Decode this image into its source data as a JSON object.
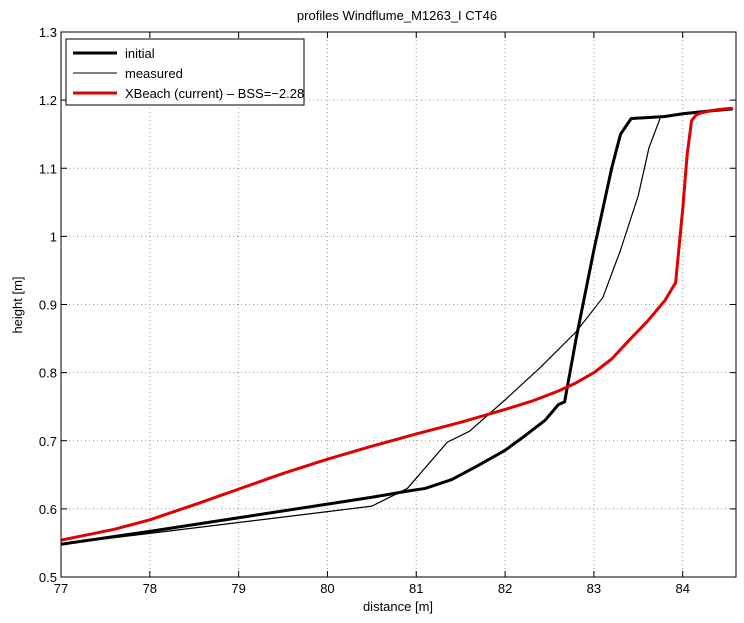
{
  "chart_data": {
    "type": "line",
    "title": "profiles Windflume_M1263_I CT46",
    "xlabel": "distance [m]",
    "ylabel": "height [m]",
    "xlim": [
      77,
      84.6
    ],
    "ylim": [
      0.5,
      1.3
    ],
    "xticks": [
      77,
      78,
      79,
      80,
      81,
      82,
      83,
      84
    ],
    "yticks": [
      0.5,
      0.6,
      0.7,
      0.8,
      0.9,
      1.0,
      1.1,
      1.2,
      1.3
    ],
    "xtick_labels": [
      "77",
      "78",
      "79",
      "80",
      "81",
      "82",
      "83",
      "84"
    ],
    "ytick_labels": [
      "0.5",
      "0.6",
      "0.7",
      "0.8",
      "0.9",
      "1",
      "1.1",
      "1.2",
      "1.3"
    ],
    "grid": true,
    "legend_position": "top-left",
    "series": [
      {
        "name": "initial",
        "color": "#000000",
        "style": "thick",
        "x": [
          77.0,
          78.0,
          79.0,
          80.0,
          80.5,
          80.9,
          81.1,
          81.4,
          81.7,
          82.0,
          82.2,
          82.45,
          82.6,
          82.67,
          82.8,
          83.0,
          83.2,
          83.3,
          83.42,
          83.55,
          83.8,
          84.0,
          84.3,
          84.55
        ],
        "y": [
          0.548,
          0.567,
          0.587,
          0.607,
          0.617,
          0.626,
          0.63,
          0.643,
          0.664,
          0.686,
          0.705,
          0.73,
          0.753,
          0.757,
          0.85,
          0.98,
          1.1,
          1.15,
          1.173,
          1.174,
          1.176,
          1.18,
          1.184,
          1.187
        ]
      },
      {
        "name": "measured",
        "color": "#000000",
        "style": "thin",
        "x": [
          77.0,
          78.0,
          79.0,
          80.0,
          80.5,
          80.9,
          81.35,
          81.6,
          82.0,
          82.4,
          82.8,
          83.1,
          83.3,
          83.5,
          83.62,
          83.75,
          84.0,
          84.3,
          84.55
        ],
        "y": [
          0.548,
          0.564,
          0.58,
          0.596,
          0.604,
          0.63,
          0.698,
          0.714,
          0.76,
          0.808,
          0.86,
          0.91,
          0.98,
          1.06,
          1.13,
          1.175,
          1.18,
          1.184,
          1.187
        ]
      },
      {
        "name": "XBeach (current) – BSS=−2.28",
        "color": "#e00000",
        "style": "thick",
        "x": [
          77.0,
          77.6,
          78.0,
          78.5,
          79.0,
          79.5,
          80.0,
          80.5,
          81.0,
          81.5,
          82.0,
          82.3,
          82.6,
          82.8,
          83.0,
          83.2,
          83.4,
          83.6,
          83.8,
          83.92,
          84.0,
          84.05,
          84.1,
          84.15,
          84.2,
          84.3,
          84.4,
          84.55
        ],
        "y": [
          0.554,
          0.57,
          0.584,
          0.606,
          0.629,
          0.652,
          0.673,
          0.692,
          0.71,
          0.727,
          0.746,
          0.758,
          0.773,
          0.785,
          0.8,
          0.82,
          0.848,
          0.875,
          0.906,
          0.932,
          1.04,
          1.12,
          1.17,
          1.178,
          1.181,
          1.184,
          1.186,
          1.188
        ]
      }
    ]
  }
}
